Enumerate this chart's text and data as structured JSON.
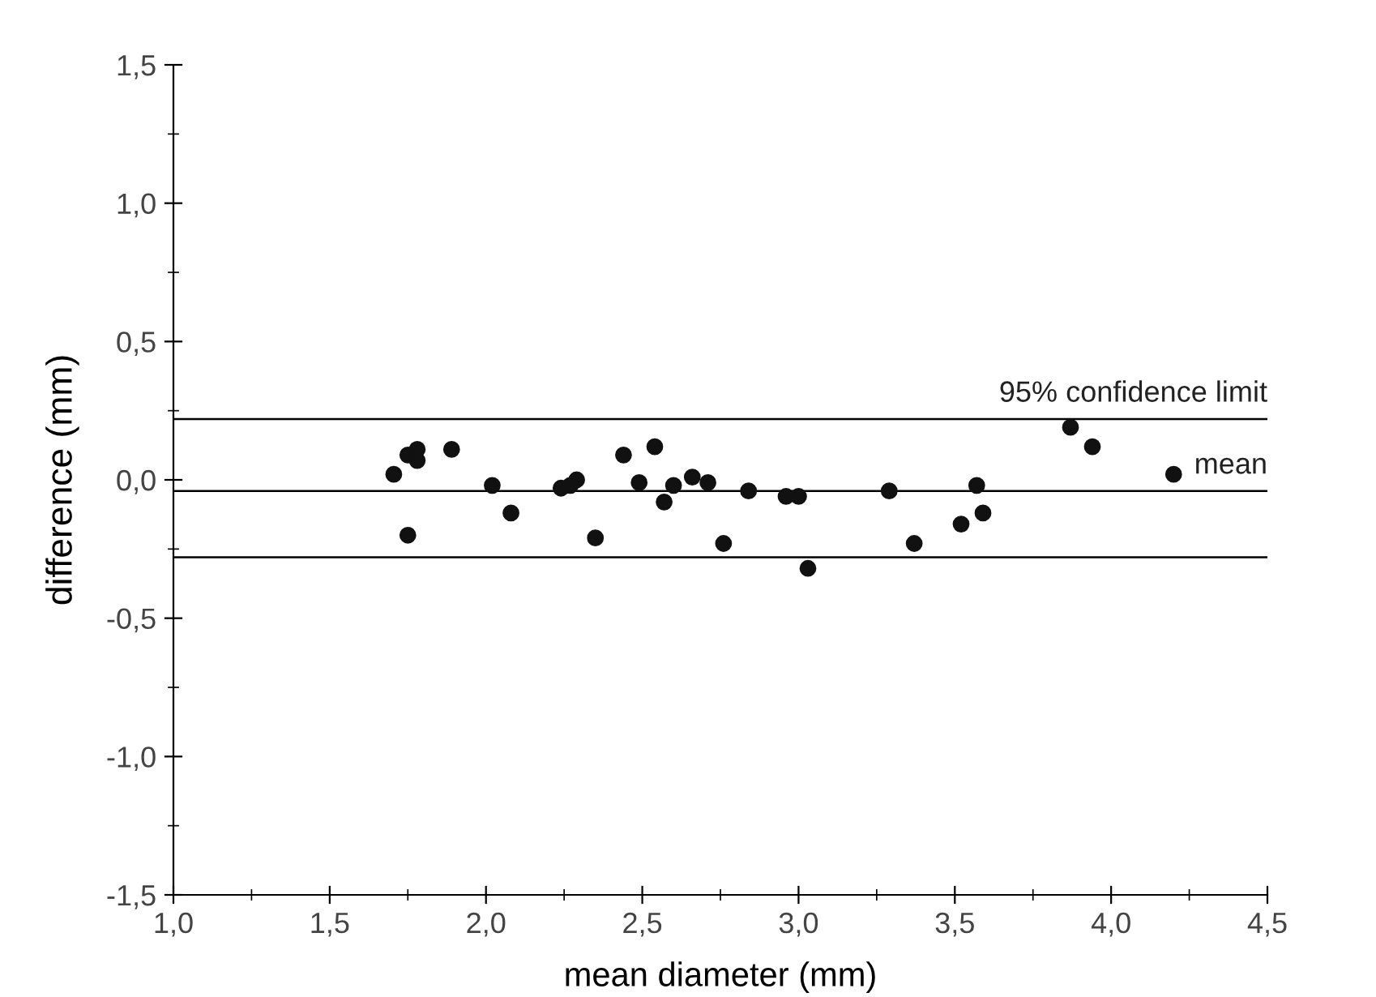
{
  "chart_data": {
    "type": "scatter",
    "xlabel": "mean diameter (mm)",
    "ylabel": "difference (mm)",
    "x": [
      1.705,
      1.75,
      1.78,
      1.78,
      1.75,
      1.89,
      2.02,
      2.08,
      2.24,
      2.27,
      2.29,
      2.35,
      2.44,
      2.49,
      2.54,
      2.57,
      2.6,
      2.66,
      2.71,
      2.76,
      2.84,
      2.96,
      3.0,
      3.03,
      3.29,
      3.37,
      3.52,
      3.57,
      3.59,
      3.87,
      3.94,
      4.2
    ],
    "values": [
      0.02,
      0.09,
      0.11,
      0.07,
      -0.2,
      0.11,
      -0.02,
      -0.12,
      -0.03,
      -0.02,
      0.0,
      -0.21,
      0.09,
      -0.01,
      0.12,
      -0.08,
      -0.02,
      0.01,
      -0.01,
      -0.23,
      -0.04,
      -0.06,
      -0.06,
      -0.32,
      -0.04,
      -0.23,
      -0.16,
      -0.02,
      -0.12,
      0.19,
      0.12,
      0.02
    ],
    "color": "#111111",
    "marker": "circle",
    "xlim": [
      1.0,
      4.5
    ],
    "xticks": [
      {
        "value": 1.0,
        "label": "1,0"
      },
      {
        "value": 1.5,
        "label": "1,5"
      },
      {
        "value": 2.0,
        "label": "2,0"
      },
      {
        "value": 2.5,
        "label": "2,5"
      },
      {
        "value": 3.0,
        "label": "3,0"
      },
      {
        "value": 3.5,
        "label": "3,5"
      },
      {
        "value": 4.0,
        "label": "4,0"
      },
      {
        "value": 4.5,
        "label": "4,5"
      }
    ],
    "ylim": [
      -1.5,
      1.5
    ],
    "yticks": [
      {
        "value": -1.5,
        "label": "-1,5"
      },
      {
        "value": -1.0,
        "label": "-1,0"
      },
      {
        "value": -0.5,
        "label": "-0,5"
      },
      {
        "value": 0.0,
        "label": "0,0"
      },
      {
        "value": 0.5,
        "label": "0,5"
      },
      {
        "value": 1.0,
        "label": "1,0"
      },
      {
        "value": 1.5,
        "label": "1,5"
      }
    ],
    "ref_lines": [
      {
        "axis": "y",
        "value": 0.22,
        "label": "95% confidence limit",
        "color": "#000000"
      },
      {
        "axis": "y",
        "value": -0.04,
        "label": "mean",
        "color": "#000000"
      },
      {
        "axis": "y",
        "value": -0.28,
        "label": null,
        "color": "#000000"
      }
    ],
    "grid": false,
    "legend": false
  }
}
